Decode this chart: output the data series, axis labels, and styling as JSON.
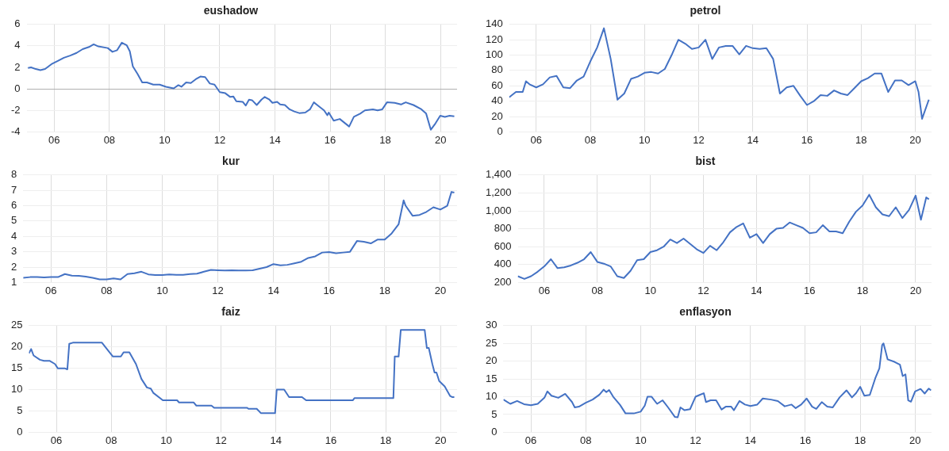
{
  "chart_data": [
    {
      "type": "line",
      "title": "eushadow",
      "color": "#4472c4",
      "grid": true,
      "xlim": [
        2005,
        2020.6
      ],
      "ylim": [
        -4,
        6
      ],
      "xticks": [
        {
          "value": 2006,
          "label": "06"
        },
        {
          "value": 2008,
          "label": "08"
        },
        {
          "value": 2010,
          "label": "10"
        },
        {
          "value": 2012,
          "label": "12"
        },
        {
          "value": 2014,
          "label": "14"
        },
        {
          "value": 2016,
          "label": "16"
        },
        {
          "value": 2018,
          "label": "18"
        },
        {
          "value": 2020,
          "label": "20"
        }
      ],
      "yticks": [
        -4,
        -2,
        0,
        2,
        4,
        6
      ],
      "x": [
        2005.05,
        2005.16,
        2005.33,
        2005.5,
        2005.67,
        2005.9,
        2006.13,
        2006.35,
        2006.58,
        2006.81,
        2007.03,
        2007.26,
        2007.43,
        2007.6,
        2007.94,
        2008.11,
        2008.28,
        2008.45,
        2008.63,
        2008.74,
        2008.85,
        2009.02,
        2009.19,
        2009.36,
        2009.59,
        2009.82,
        2010.05,
        2010.33,
        2010.5,
        2010.61,
        2010.78,
        2010.95,
        2011.13,
        2011.3,
        2011.47,
        2011.64,
        2011.81,
        2012.0,
        2012.2,
        2012.38,
        2012.49,
        2012.6,
        2012.83,
        2012.94,
        2013.06,
        2013.17,
        2013.34,
        2013.51,
        2013.63,
        2013.8,
        2013.91,
        2014.08,
        2014.19,
        2014.36,
        2014.53,
        2014.7,
        2014.88,
        2015.1,
        2015.27,
        2015.41,
        2015.56,
        2015.78,
        2015.9,
        2015.95,
        2016.13,
        2016.35,
        2016.69,
        2016.86,
        2017.09,
        2017.26,
        2017.55,
        2017.72,
        2017.89,
        2018.06,
        2018.34,
        2018.57,
        2018.74,
        2019.02,
        2019.31,
        2019.48,
        2019.65,
        2019.82,
        2019.99,
        2020.16,
        2020.33,
        2020.5
      ],
      "values": [
        1.95,
        2.0,
        1.85,
        1.75,
        1.85,
        2.3,
        2.6,
        2.9,
        3.1,
        3.35,
        3.7,
        3.9,
        4.15,
        3.95,
        3.8,
        3.45,
        3.6,
        4.3,
        4.05,
        3.5,
        2.1,
        1.4,
        0.6,
        0.6,
        0.4,
        0.4,
        0.2,
        0.05,
        0.35,
        0.2,
        0.6,
        0.55,
        0.9,
        1.15,
        1.1,
        0.5,
        0.4,
        -0.3,
        -0.4,
        -0.75,
        -0.7,
        -1.15,
        -1.2,
        -1.55,
        -1.0,
        -1.05,
        -1.5,
        -1.0,
        -0.75,
        -1.0,
        -1.3,
        -1.2,
        -1.45,
        -1.5,
        -1.9,
        -2.1,
        -2.25,
        -2.2,
        -1.9,
        -1.25,
        -1.55,
        -2.0,
        -2.45,
        -2.2,
        -2.95,
        -2.8,
        -3.5,
        -2.6,
        -2.3,
        -2.0,
        -1.9,
        -2.0,
        -1.9,
        -1.25,
        -1.3,
        -1.45,
        -1.25,
        -1.5,
        -1.9,
        -2.3,
        -3.8,
        -3.2,
        -2.5,
        -2.6,
        -2.5,
        -2.55
      ]
    },
    {
      "type": "line",
      "title": "petrol",
      "color": "#4472c4",
      "grid": true,
      "xlim": [
        2005,
        2020.6
      ],
      "ylim": [
        0,
        140
      ],
      "xticks": [
        {
          "value": 2006,
          "label": "06"
        },
        {
          "value": 2008,
          "label": "08"
        },
        {
          "value": 2010,
          "label": "10"
        },
        {
          "value": 2012,
          "label": "12"
        },
        {
          "value": 2014,
          "label": "14"
        },
        {
          "value": 2016,
          "label": "16"
        },
        {
          "value": 2018,
          "label": "18"
        },
        {
          "value": 2020,
          "label": "20"
        }
      ],
      "yticks": [
        0,
        20,
        40,
        60,
        80,
        100,
        120,
        140
      ],
      "x": [
        2005.0,
        2005.25,
        2005.5,
        2005.62,
        2005.75,
        2006.0,
        2006.25,
        2006.5,
        2006.75,
        2007.0,
        2007.25,
        2007.5,
        2007.75,
        2008.0,
        2008.25,
        2008.5,
        2008.75,
        2009.0,
        2009.25,
        2009.5,
        2009.75,
        2010.0,
        2010.25,
        2010.5,
        2010.75,
        2011.0,
        2011.25,
        2011.5,
        2011.75,
        2012.0,
        2012.25,
        2012.5,
        2012.75,
        2013.0,
        2013.25,
        2013.5,
        2013.75,
        2014.0,
        2014.25,
        2014.5,
        2014.75,
        2015.0,
        2015.25,
        2015.5,
        2015.75,
        2016.0,
        2016.25,
        2016.5,
        2016.75,
        2017.0,
        2017.25,
        2017.5,
        2017.75,
        2018.0,
        2018.25,
        2018.5,
        2018.75,
        2019.0,
        2019.25,
        2019.5,
        2019.75,
        2020.0,
        2020.12,
        2020.25,
        2020.5
      ],
      "values": [
        45,
        52,
        52,
        66,
        62,
        58,
        62,
        71,
        73,
        58,
        57,
        67,
        72,
        92,
        110,
        135,
        95,
        42,
        50,
        69,
        72,
        77,
        78,
        76,
        82,
        100,
        120,
        115,
        108,
        110,
        120,
        95,
        110,
        112,
        112,
        101,
        112,
        109,
        108,
        109,
        95,
        50,
        58,
        60,
        47,
        35,
        40,
        48,
        47,
        54,
        50,
        48,
        57,
        66,
        70,
        76,
        76,
        52,
        67,
        67,
        61,
        66,
        52,
        17,
        42
      ]
    },
    {
      "type": "line",
      "title": "kur",
      "color": "#4472c4",
      "grid": true,
      "xlim": [
        2005,
        2020.6
      ],
      "ylim": [
        1,
        8
      ],
      "xticks": [
        {
          "value": 2006,
          "label": "06"
        },
        {
          "value": 2008,
          "label": "08"
        },
        {
          "value": 2010,
          "label": "10"
        },
        {
          "value": 2012,
          "label": "12"
        },
        {
          "value": 2014,
          "label": "14"
        },
        {
          "value": 2016,
          "label": "16"
        },
        {
          "value": 2018,
          "label": "18"
        },
        {
          "value": 2020,
          "label": "20"
        }
      ],
      "yticks": [
        1,
        2,
        3,
        4,
        5,
        6,
        7,
        8
      ],
      "x": [
        2005.0,
        2005.25,
        2005.5,
        2005.75,
        2006.0,
        2006.25,
        2006.5,
        2006.75,
        2007.0,
        2007.25,
        2007.5,
        2007.75,
        2008.0,
        2008.25,
        2008.5,
        2008.75,
        2009.0,
        2009.25,
        2009.5,
        2009.75,
        2010.0,
        2010.25,
        2010.5,
        2010.75,
        2011.0,
        2011.25,
        2011.5,
        2011.75,
        2012.0,
        2012.25,
        2012.5,
        2012.75,
        2013.0,
        2013.25,
        2013.5,
        2013.75,
        2014.0,
        2014.25,
        2014.5,
        2014.75,
        2015.0,
        2015.25,
        2015.5,
        2015.75,
        2016.0,
        2016.25,
        2016.5,
        2016.75,
        2017.0,
        2017.25,
        2017.5,
        2017.75,
        2018.0,
        2018.25,
        2018.5,
        2018.68,
        2018.75,
        2019.0,
        2019.25,
        2019.5,
        2019.75,
        2020.0,
        2020.25,
        2020.4,
        2020.5
      ],
      "values": [
        1.3,
        1.35,
        1.35,
        1.33,
        1.35,
        1.35,
        1.55,
        1.45,
        1.43,
        1.38,
        1.3,
        1.2,
        1.2,
        1.27,
        1.2,
        1.55,
        1.6,
        1.7,
        1.53,
        1.48,
        1.48,
        1.52,
        1.5,
        1.5,
        1.55,
        1.58,
        1.7,
        1.82,
        1.8,
        1.78,
        1.8,
        1.78,
        1.78,
        1.8,
        1.9,
        2.0,
        2.2,
        2.12,
        2.15,
        2.25,
        2.35,
        2.6,
        2.7,
        2.95,
        2.98,
        2.9,
        2.95,
        3.0,
        3.7,
        3.65,
        3.55,
        3.8,
        3.8,
        4.2,
        4.8,
        6.35,
        6.0,
        5.35,
        5.4,
        5.6,
        5.9,
        5.75,
        6.0,
        6.9,
        6.85
      ]
    },
    {
      "type": "line",
      "title": "bist",
      "color": "#4472c4",
      "grid": true,
      "xlim": [
        2005,
        2020.6
      ],
      "ylim": [
        200,
        1400
      ],
      "xticks": [
        {
          "value": 2006,
          "label": "06"
        },
        {
          "value": 2008,
          "label": "08"
        },
        {
          "value": 2010,
          "label": "10"
        },
        {
          "value": 2012,
          "label": "12"
        },
        {
          "value": 2014,
          "label": "14"
        },
        {
          "value": 2016,
          "label": "16"
        },
        {
          "value": 2018,
          "label": "18"
        },
        {
          "value": 2020,
          "label": "20"
        }
      ],
      "yticks": [
        {
          "value": 200,
          "label": "200"
        },
        {
          "value": 400,
          "label": "400"
        },
        {
          "value": 600,
          "label": "600"
        },
        {
          "value": 800,
          "label": "800"
        },
        {
          "value": 1000,
          "label": "1,000"
        },
        {
          "value": 1200,
          "label": "1,200"
        },
        {
          "value": 1400,
          "label": "1,400"
        }
      ],
      "x": [
        2005.0,
        2005.25,
        2005.5,
        2005.75,
        2006.0,
        2006.25,
        2006.5,
        2006.75,
        2007.0,
        2007.25,
        2007.5,
        2007.75,
        2008.0,
        2008.25,
        2008.5,
        2008.75,
        2009.0,
        2009.25,
        2009.5,
        2009.75,
        2010.0,
        2010.25,
        2010.5,
        2010.75,
        2011.0,
        2011.25,
        2011.5,
        2011.75,
        2012.0,
        2012.25,
        2012.5,
        2012.75,
        2013.0,
        2013.25,
        2013.5,
        2013.75,
        2014.0,
        2014.25,
        2014.5,
        2014.75,
        2015.0,
        2015.25,
        2015.5,
        2015.75,
        2016.0,
        2016.25,
        2016.5,
        2016.75,
        2017.0,
        2017.25,
        2017.5,
        2017.75,
        2018.0,
        2018.25,
        2018.5,
        2018.75,
        2019.0,
        2019.25,
        2019.5,
        2019.75,
        2020.0,
        2020.2,
        2020.4,
        2020.5
      ],
      "values": [
        270,
        240,
        270,
        320,
        380,
        460,
        360,
        370,
        390,
        420,
        460,
        540,
        430,
        410,
        380,
        270,
        250,
        330,
        450,
        460,
        540,
        560,
        600,
        680,
        640,
        690,
        630,
        570,
        530,
        610,
        560,
        650,
        760,
        820,
        860,
        700,
        740,
        640,
        740,
        800,
        810,
        870,
        840,
        810,
        750,
        760,
        840,
        770,
        770,
        750,
        880,
        990,
        1060,
        1180,
        1040,
        960,
        940,
        1040,
        920,
        1010,
        1170,
        900,
        1150,
        1130
      ]
    },
    {
      "type": "line",
      "title": "faiz",
      "color": "#4472c4",
      "grid": true,
      "xlim": [
        2005,
        2020.6
      ],
      "ylim": [
        0,
        25
      ],
      "xticks": [
        {
          "value": 2006,
          "label": "06"
        },
        {
          "value": 2008,
          "label": "08"
        },
        {
          "value": 2010,
          "label": "10"
        },
        {
          "value": 2012,
          "label": "12"
        },
        {
          "value": 2014,
          "label": "14"
        },
        {
          "value": 2016,
          "label": "16"
        },
        {
          "value": 2018,
          "label": "18"
        },
        {
          "value": 2020,
          "label": "20"
        }
      ],
      "yticks": [
        0,
        5,
        10,
        15,
        20,
        25
      ],
      "x": [
        2005.0,
        2005.08,
        2005.17,
        2005.4,
        2005.55,
        2005.75,
        2005.95,
        2006.05,
        2006.3,
        2006.4,
        2006.47,
        2006.6,
        2007.66,
        2008.06,
        2008.35,
        2008.45,
        2008.66,
        2008.9,
        2009.1,
        2009.3,
        2009.44,
        2009.53,
        2009.88,
        2010.4,
        2010.47,
        2011.0,
        2011.1,
        2011.65,
        2011.75,
        2012.95,
        2013.0,
        2013.3,
        2013.45,
        2013.97,
        2014.03,
        2014.3,
        2014.48,
        2014.95,
        2015.1,
        2016.8,
        2016.86,
        2018.28,
        2018.33,
        2018.47,
        2018.55,
        2019.42,
        2019.5,
        2019.57,
        2019.7,
        2019.78,
        2019.85,
        2019.95,
        2020.15,
        2020.35,
        2020.42,
        2020.5
      ],
      "values": [
        18.5,
        19.5,
        18,
        17,
        16.75,
        16.75,
        16,
        15,
        15,
        14.75,
        20.75,
        21,
        21,
        17.75,
        17.75,
        18.75,
        18.75,
        16,
        12.5,
        10.5,
        10.25,
        9.25,
        7.5,
        7.5,
        7,
        7,
        6.25,
        6.25,
        5.75,
        5.75,
        5.5,
        5.5,
        4.5,
        4.5,
        10,
        10,
        8.25,
        8.25,
        7.5,
        7.5,
        8,
        8,
        17.75,
        17.75,
        24,
        24,
        19.75,
        19.75,
        16,
        14,
        14,
        12,
        10.75,
        8.5,
        8.25,
        8.25
      ]
    },
    {
      "type": "line",
      "title": "enflasyon",
      "color": "#4472c4",
      "grid": true,
      "xlim": [
        2005,
        2020.6
      ],
      "ylim": [
        0,
        30
      ],
      "xticks": [
        {
          "value": 2006,
          "label": "06"
        },
        {
          "value": 2008,
          "label": "08"
        },
        {
          "value": 2010,
          "label": "10"
        },
        {
          "value": 2012,
          "label": "12"
        },
        {
          "value": 2014,
          "label": "14"
        },
        {
          "value": 2016,
          "label": "16"
        },
        {
          "value": 2018,
          "label": "18"
        },
        {
          "value": 2020,
          "label": "20"
        }
      ],
      "yticks": [
        0,
        5,
        10,
        15,
        20,
        25,
        30
      ],
      "x": [
        2005.0,
        2005.25,
        2005.5,
        2005.75,
        2006.0,
        2006.25,
        2006.5,
        2006.6,
        2006.75,
        2007.0,
        2007.25,
        2007.5,
        2007.6,
        2007.75,
        2008.0,
        2008.25,
        2008.5,
        2008.65,
        2008.75,
        2008.85,
        2009.0,
        2009.25,
        2009.45,
        2009.75,
        2010.0,
        2010.15,
        2010.25,
        2010.4,
        2010.6,
        2010.8,
        2011.0,
        2011.25,
        2011.35,
        2011.45,
        2011.6,
        2011.8,
        2012.0,
        2012.15,
        2012.3,
        2012.38,
        2012.55,
        2012.75,
        2012.95,
        2013.1,
        2013.3,
        2013.4,
        2013.6,
        2013.8,
        2014.0,
        2014.25,
        2014.45,
        2014.75,
        2015.0,
        2015.25,
        2015.5,
        2015.65,
        2015.85,
        2016.05,
        2016.25,
        2016.4,
        2016.6,
        2016.8,
        2017.0,
        2017.25,
        2017.5,
        2017.7,
        2017.85,
        2018.0,
        2018.15,
        2018.35,
        2018.55,
        2018.7,
        2018.8,
        2018.85,
        2019.0,
        2019.25,
        2019.45,
        2019.55,
        2019.65,
        2019.75,
        2019.85,
        2020.0,
        2020.2,
        2020.35,
        2020.5,
        2020.58
      ],
      "values": [
        9.2,
        8,
        8.8,
        7.9,
        7.6,
        8.0,
        9.8,
        11.5,
        10.3,
        9.7,
        10.8,
        8.5,
        7,
        7.2,
        8.3,
        9.2,
        10.6,
        12,
        11.3,
        11.9,
        10,
        7.7,
        5.3,
        5.3,
        5.8,
        7.5,
        10,
        10,
        8,
        9,
        7,
        4.3,
        4.2,
        7,
        6.2,
        6.5,
        10,
        10.5,
        11,
        8.5,
        9,
        9,
        6.4,
        7.2,
        7.2,
        6.2,
        8.8,
        7.8,
        7.4,
        7.8,
        9.5,
        9.2,
        8.8,
        7.3,
        7.8,
        6.8,
        7.8,
        9.5,
        7.2,
        6.6,
        8.5,
        7.2,
        7,
        9.8,
        11.8,
        9.8,
        11,
        12.8,
        10.3,
        10.5,
        15.2,
        18,
        24.5,
        25,
        20.5,
        19.8,
        19,
        15.8,
        16.3,
        9,
        8.6,
        11.5,
        12.2,
        10.9,
        12.3,
        11.8
      ]
    }
  ]
}
